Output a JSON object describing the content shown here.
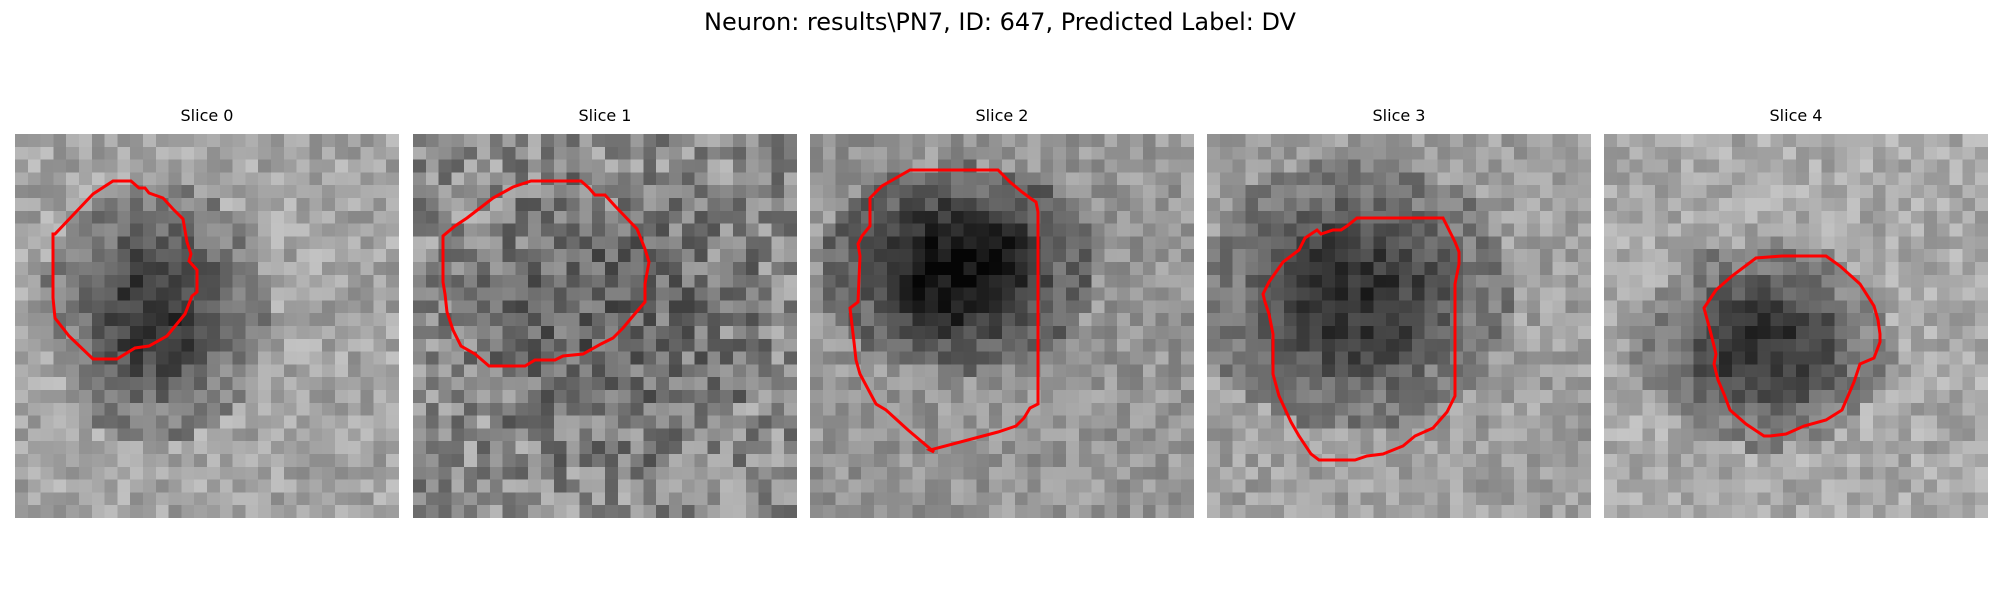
{
  "suptitle": "Neuron: results\\PN7, ID: 647, Predicted Label: DV",
  "accent_color": "#ff0000",
  "slices": [
    {
      "title": "Slice 0"
    },
    {
      "title": "Slice 1"
    },
    {
      "title": "Slice 2"
    },
    {
      "title": "Slice 3"
    },
    {
      "title": "Slice 4"
    }
  ]
}
